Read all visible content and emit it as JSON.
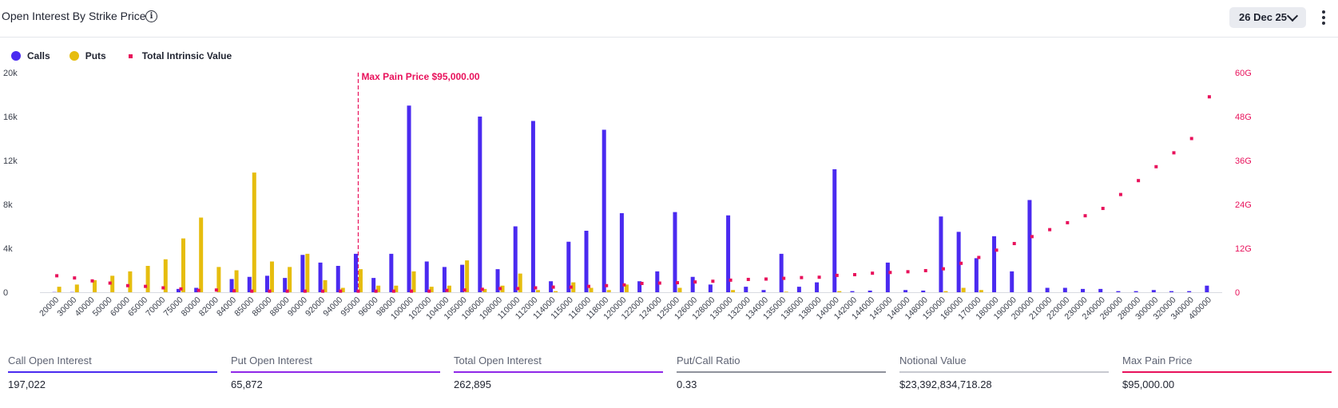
{
  "header": {
    "title": "Open Interest By Strike Price",
    "date": "26 Dec 25"
  },
  "legend": [
    {
      "label": "Calls",
      "color": "#4a2af0"
    },
    {
      "label": "Puts",
      "color": "#e6bd0e"
    },
    {
      "label": "Total Intrinsic Value",
      "color": "#e8115b"
    }
  ],
  "chart_data": {
    "type": "bar",
    "xlabel": "",
    "ylabel": "",
    "ylim": [
      0,
      20000
    ],
    "y2lim": [
      0,
      60
    ],
    "yticks": [
      "0",
      "4k",
      "8k",
      "12k",
      "16k",
      "20k"
    ],
    "y2ticks": [
      "0",
      "12G",
      "24G",
      "36G",
      "48G",
      "60G"
    ],
    "legend_position": "top-left",
    "grid": false,
    "annotation": {
      "label": "Max Pain Price $95,000.00",
      "x": "95000"
    },
    "categories": [
      "20000",
      "30000",
      "40000",
      "50000",
      "60000",
      "65000",
      "70000",
      "75000",
      "80000",
      "82000",
      "84000",
      "85000",
      "86000",
      "88000",
      "90000",
      "92000",
      "94000",
      "95000",
      "96000",
      "98000",
      "100000",
      "102000",
      "104000",
      "105000",
      "106000",
      "108000",
      "110000",
      "112000",
      "114000",
      "115000",
      "116000",
      "118000",
      "120000",
      "122000",
      "124000",
      "125000",
      "126000",
      "128000",
      "130000",
      "132000",
      "134000",
      "135000",
      "136000",
      "138000",
      "140000",
      "142000",
      "144000",
      "145000",
      "146000",
      "148000",
      "150000",
      "160000",
      "170000",
      "180000",
      "190000",
      "200000",
      "210000",
      "220000",
      "230000",
      "240000",
      "260000",
      "280000",
      "300000",
      "320000",
      "340000",
      "400000"
    ],
    "series": [
      {
        "name": "Calls",
        "type": "bar",
        "axis": "left",
        "values": [
          20,
          20,
          0,
          0,
          0,
          0,
          0,
          300,
          400,
          0,
          1200,
          1400,
          1500,
          1300,
          3400,
          2700,
          2400,
          3500,
          1300,
          3500,
          17000,
          2800,
          2300,
          2500,
          16000,
          2100,
          6000,
          15600,
          1000,
          4600,
          5600,
          14800,
          7200,
          1000,
          1900,
          7300,
          1400,
          700,
          7000,
          500,
          200,
          3500,
          500,
          900,
          11200,
          100,
          150,
          2700,
          200,
          150,
          6900,
          5500,
          3100,
          5100,
          1900,
          8400,
          400,
          400,
          300,
          300,
          100,
          100,
          200,
          100,
          100,
          600
        ]
      },
      {
        "name": "Puts",
        "type": "bar",
        "axis": "left",
        "values": [
          500,
          700,
          1100,
          1500,
          1900,
          2400,
          3000,
          4900,
          6800,
          2300,
          2000,
          10900,
          2800,
          2300,
          3500,
          1100,
          400,
          2100,
          600,
          600,
          1900,
          500,
          600,
          2900,
          300,
          600,
          1700,
          200,
          100,
          900,
          400,
          200,
          700,
          0,
          0,
          400,
          0,
          0,
          200,
          0,
          0,
          50,
          0,
          0,
          100,
          0,
          0,
          0,
          0,
          0,
          100,
          400,
          200,
          0,
          0,
          0,
          0,
          0,
          0,
          0,
          0,
          0,
          0,
          0,
          0,
          0
        ]
      },
      {
        "name": "Total Intrinsic Value",
        "type": "scatter",
        "axis": "right",
        "unit": "G",
        "values": [
          4.5,
          3.9,
          3.1,
          2.5,
          1.8,
          1.6,
          1.2,
          0.9,
          0.5,
          0.6,
          0.4,
          0.3,
          0.3,
          0.3,
          0.3,
          0.3,
          0.3,
          0.3,
          0.3,
          0.3,
          0.3,
          0.3,
          0.5,
          0.6,
          0.8,
          1.0,
          1.0,
          1.2,
          1.4,
          1.4,
          1.6,
          1.8,
          2.0,
          2.4,
          2.5,
          2.6,
          2.8,
          3.0,
          3.3,
          3.5,
          3.6,
          3.8,
          4.0,
          4.1,
          4.6,
          4.8,
          5.2,
          5.4,
          5.6,
          5.9,
          6.4,
          7.9,
          9.5,
          11.5,
          13.3,
          15.2,
          17.1,
          19.0,
          20.9,
          22.9,
          26.7,
          30.5,
          34.3,
          38.1,
          42.0,
          53.4
        ]
      }
    ]
  },
  "stats": [
    {
      "label": "Call Open Interest",
      "value": "197,022",
      "color": "#4a2af0"
    },
    {
      "label": "Put Open Interest",
      "value": "65,872",
      "color": "#8f27e8"
    },
    {
      "label": "Total Open Interest",
      "value": "262,895",
      "color": "#8f27e8"
    },
    {
      "label": "Put/Call Ratio",
      "value": "0.33",
      "color": "#8f929c"
    },
    {
      "label": "Notional Value",
      "value": "$23,392,834,718.28",
      "color": "#c7c9d0"
    },
    {
      "label": "Max Pain Price",
      "value": "$95,000.00",
      "color": "#e8115b"
    }
  ]
}
